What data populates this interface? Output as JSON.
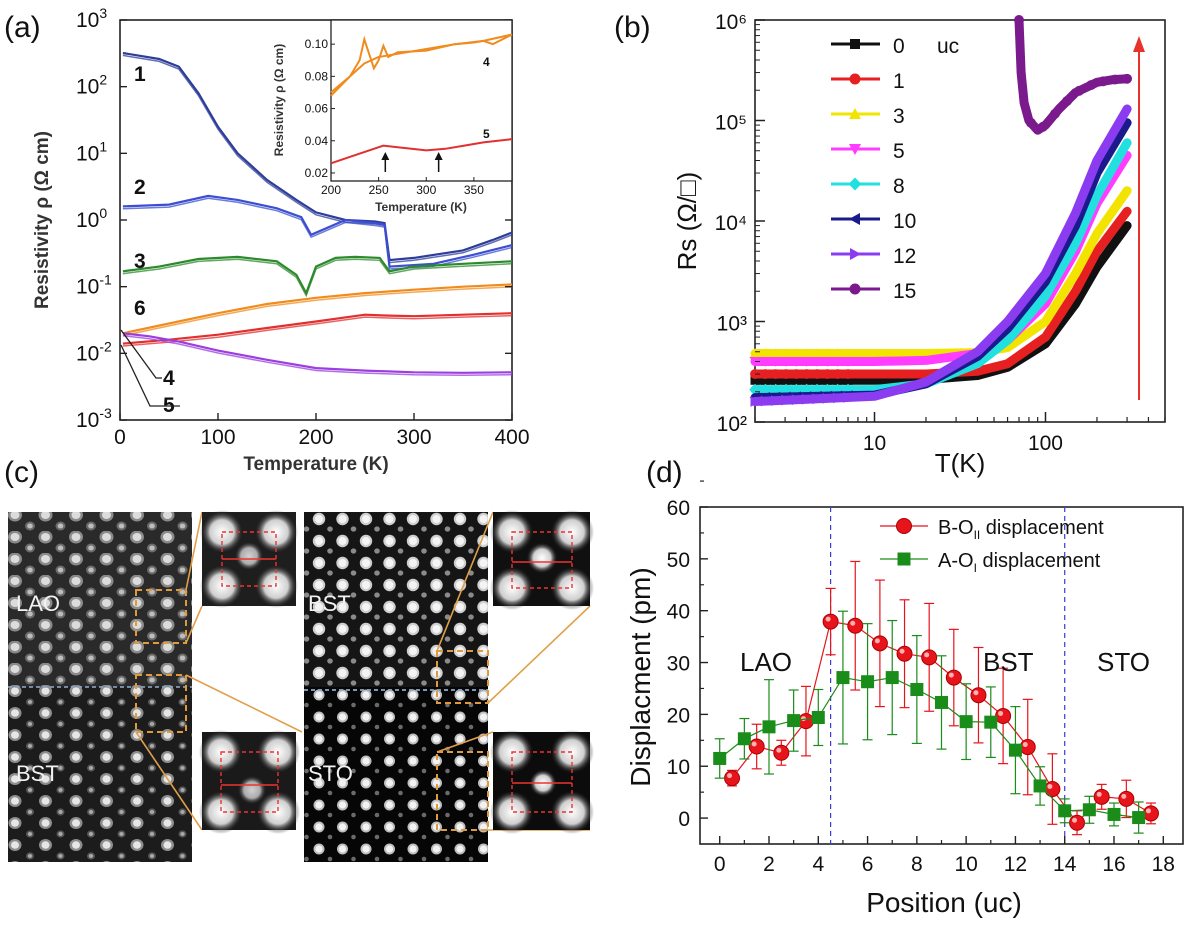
{
  "panel_labels": [
    "(a)",
    "(b)",
    "(c)",
    "(d)"
  ],
  "chart_data": [
    {
      "panel": "(a)",
      "type": "line",
      "xlabel": "Temperature (K)",
      "ylabel": "Resistivity ρ (Ω cm)",
      "xlim": [
        0,
        400
      ],
      "ylim": [
        0.001,
        1000
      ],
      "yscale": "log",
      "xticks": [
        "0",
        "100",
        "200",
        "300",
        "400"
      ],
      "yticks": [
        "10-3",
        "10-2",
        "10-1",
        "100",
        "101",
        "102",
        "103"
      ],
      "series": [
        {
          "name": "1",
          "color": "#2e3d9a",
          "x": [
            3,
            40,
            60,
            80,
            100,
            120,
            150,
            180,
            200,
            230,
            260,
            270,
            275,
            300,
            350,
            380,
            400
          ],
          "y": [
            320,
            260,
            200,
            80,
            25,
            10,
            4,
            2,
            1.3,
            1.0,
            0.95,
            0.9,
            0.25,
            0.27,
            0.35,
            0.5,
            0.65
          ]
        },
        {
          "name": "2",
          "color": "#3b4fd0",
          "x": [
            3,
            50,
            90,
            120,
            160,
            185,
            195,
            230,
            260,
            270,
            275,
            320,
            360,
            400
          ],
          "y": [
            1.6,
            1.7,
            2.3,
            2.0,
            1.5,
            1.1,
            0.6,
            1.0,
            0.9,
            0.85,
            0.2,
            0.22,
            0.3,
            0.42
          ]
        },
        {
          "name": "3",
          "color": "#2c8a2c",
          "x": [
            3,
            40,
            80,
            120,
            160,
            180,
            190,
            200,
            220,
            240,
            265,
            275,
            300,
            350,
            400
          ],
          "y": [
            0.17,
            0.2,
            0.26,
            0.28,
            0.24,
            0.15,
            0.08,
            0.2,
            0.27,
            0.28,
            0.27,
            0.17,
            0.2,
            0.22,
            0.24
          ]
        },
        {
          "name": "4",
          "color": "#f08c1e",
          "x": [
            3,
            50,
            100,
            150,
            200,
            250,
            300,
            350,
            400
          ],
          "y": [
            0.02,
            0.028,
            0.04,
            0.055,
            0.068,
            0.08,
            0.09,
            0.1,
            0.108
          ]
        },
        {
          "name": "5",
          "color": "#e03030",
          "x": [
            3,
            50,
            100,
            150,
            200,
            250,
            270,
            300,
            350,
            400
          ],
          "y": [
            0.014,
            0.016,
            0.019,
            0.024,
            0.03,
            0.038,
            0.037,
            0.036,
            0.038,
            0.04
          ]
        },
        {
          "name": "6",
          "color": "#9b3fe0",
          "x": [
            3,
            30,
            60,
            100,
            150,
            200,
            250,
            300,
            350,
            400
          ],
          "y": [
            0.02,
            0.018,
            0.015,
            0.011,
            0.008,
            0.006,
            0.0055,
            0.0052,
            0.0051,
            0.0052
          ]
        }
      ],
      "inset": {
        "xlabel": "Temperature (K)",
        "ylabel": "Resistivity ρ (Ω cm)",
        "xlim": [
          200,
          390
        ],
        "ylim": [
          0.015,
          0.115
        ],
        "xticks": [
          "200",
          "250",
          "300",
          "350"
        ],
        "yticks": [
          "0.02",
          "0.04",
          "0.06",
          "0.08",
          "0.10"
        ],
        "series": [
          {
            "name": "4",
            "color": "#f08c1e",
            "x": [
              200,
              220,
              230,
              235,
              240,
              245,
              250,
              255,
              260,
              270,
              300,
              330,
              350,
              360,
              370,
              390
            ],
            "y": [
              0.068,
              0.08,
              0.09,
              0.103,
              0.094,
              0.085,
              0.09,
              0.099,
              0.092,
              0.095,
              0.096,
              0.1,
              0.101,
              0.102,
              0.1,
              0.106
            ]
          },
          {
            "name": "",
            "color": "#f08c1e",
            "x": [
              200,
              220,
              235,
              250,
              270,
              300,
              330,
              360,
              390
            ],
            "y": [
              0.07,
              0.08,
              0.088,
              0.092,
              0.094,
              0.097,
              0.1,
              0.102,
              0.106
            ]
          },
          {
            "name": "5",
            "color": "#e03030",
            "x": [
              200,
              220,
              240,
              255,
              270,
              300,
              320,
              340,
              360,
              390
            ],
            "y": [
              0.026,
              0.03,
              0.034,
              0.037,
              0.036,
              0.034,
              0.035,
              0.037,
              0.039,
              0.041
            ]
          }
        ],
        "arrows_x": [
          257,
          313
        ]
      }
    },
    {
      "panel": "(b)",
      "type": "line",
      "xlabel": "T(K)",
      "ylabel": "Rs (Ω/□)",
      "xscale": "log",
      "yscale": "log",
      "xlim": [
        2,
        500
      ],
      "ylim": [
        100,
        1000000
      ],
      "xticks": [
        "10",
        "100"
      ],
      "yticks": [
        "10²",
        "10³",
        "10⁴",
        "10⁵",
        "10⁶"
      ],
      "legend_title": "uc",
      "series": [
        {
          "name": "0",
          "color": "#111111",
          "marker": "square",
          "x": [
            2,
            10,
            20,
            40,
            60,
            100,
            150,
            200,
            300
          ],
          "y": [
            260,
            260,
            265,
            290,
            350,
            600,
            1500,
            3500,
            9000
          ]
        },
        {
          "name": "1",
          "color": "#e62020",
          "marker": "circle",
          "x": [
            2,
            10,
            20,
            40,
            60,
            100,
            150,
            200,
            300
          ],
          "y": [
            300,
            300,
            300,
            320,
            380,
            700,
            2000,
            5000,
            12500
          ]
        },
        {
          "name": "3",
          "color": "#f2e400",
          "marker": "triangle-up",
          "x": [
            2,
            10,
            20,
            40,
            60,
            100,
            150,
            200,
            300
          ],
          "y": [
            480,
            480,
            480,
            490,
            550,
            1000,
            3000,
            7500,
            20000
          ]
        },
        {
          "name": "5",
          "color": "#ff3cff",
          "marker": "triangle-down",
          "x": [
            2,
            10,
            20,
            40,
            60,
            100,
            150,
            200,
            300
          ],
          "y": [
            400,
            400,
            410,
            480,
            650,
            1500,
            5000,
            15000,
            45000
          ]
        },
        {
          "name": "8",
          "color": "#22e0e0",
          "marker": "diamond",
          "x": [
            2,
            10,
            20,
            40,
            60,
            100,
            150,
            200,
            300
          ],
          "y": [
            210,
            210,
            240,
            380,
            650,
            1800,
            6000,
            18000,
            60000
          ]
        },
        {
          "name": "10",
          "color": "#1a1a8c",
          "marker": "triangle-left",
          "x": [
            2,
            10,
            20,
            40,
            60,
            100,
            150,
            200,
            300
          ],
          "y": [
            175,
            185,
            240,
            450,
            850,
            2500,
            9000,
            30000,
            95000
          ]
        },
        {
          "name": "12",
          "color": "#8c3cf0",
          "marker": "triangle-right",
          "x": [
            2,
            10,
            20,
            40,
            60,
            100,
            150,
            200,
            300
          ],
          "y": [
            160,
            180,
            250,
            500,
            1000,
            3000,
            12000,
            40000,
            130000
          ]
        },
        {
          "name": "15",
          "color": "#7a1a8c",
          "marker": "circle",
          "x": [
            70,
            72,
            75,
            80,
            90,
            100,
            120,
            150,
            200,
            250,
            300
          ],
          "y": [
            1000000,
            300000,
            150000,
            100000,
            80000,
            90000,
            130000,
            190000,
            240000,
            255000,
            260000
          ]
        }
      ]
    },
    {
      "panel": "(d)",
      "type": "scatter",
      "xlabel": "Position (uc)",
      "ylabel": "Displacment (pm)",
      "xlim": [
        -0.8,
        18.8
      ],
      "ylim": [
        -5,
        60
      ],
      "xticks": [
        "0",
        "2",
        "4",
        "6",
        "8",
        "10",
        "12",
        "14",
        "16",
        "18"
      ],
      "yticks": [
        "0",
        "10",
        "20",
        "30",
        "40",
        "50",
        "60"
      ],
      "region_labels": [
        "LAO",
        "BST",
        "STO"
      ],
      "boundaries_x": [
        4.5,
        14.0
      ],
      "series": [
        {
          "name": "B-O",
          "subscript": "II",
          "suffix": " displacement",
          "color": "#e8141c",
          "marker": "circle",
          "x": [
            0.5,
            1.5,
            2.5,
            3.5,
            4.5,
            5.5,
            6.5,
            7.5,
            8.5,
            9.5,
            10.5,
            11.5,
            12.5,
            13.5,
            14.5,
            15.5,
            16.5,
            17.5
          ],
          "y": [
            7.7,
            13.8,
            12.6,
            18.7,
            37.9,
            37.1,
            33.7,
            31.7,
            31.0,
            27.1,
            23.7,
            19.7,
            13.7,
            5.6,
            -0.9,
            4.1,
            3.7,
            0.9
          ],
          "err": [
            1.5,
            4.3,
            2.4,
            6.7,
            6.4,
            12.4,
            12.2,
            10.4,
            10.4,
            9.3,
            9.2,
            9.2,
            9.2,
            6.8,
            2.3,
            2.4,
            3.6,
            2.0
          ]
        },
        {
          "name": "A-O",
          "subscript": "I",
          "suffix": " displacement",
          "color": "#1a8c1a",
          "marker": "square",
          "x": [
            0.0,
            1.0,
            2.0,
            3.0,
            4.0,
            5.0,
            6.0,
            7.0,
            8.0,
            9.0,
            10.0,
            11.0,
            12.0,
            13.0,
            14.0,
            15.0,
            16.0,
            17.0
          ],
          "y": [
            11.5,
            15.3,
            17.6,
            18.8,
            19.4,
            27.1,
            26.3,
            27.1,
            24.8,
            22.3,
            18.6,
            18.5,
            13.1,
            6.2,
            1.4,
            1.6,
            0.7,
            0.1
          ],
          "err": [
            3.8,
            3.9,
            9.1,
            5.9,
            5.4,
            12.8,
            11.2,
            11.0,
            10.4,
            9.0,
            7.3,
            6.8,
            8.4,
            3.7,
            2.3,
            2.6,
            2.2,
            3.0
          ]
        }
      ]
    }
  ],
  "image_c": {
    "labels": [
      "LAO",
      "BST",
      "BST",
      "STO"
    ]
  }
}
